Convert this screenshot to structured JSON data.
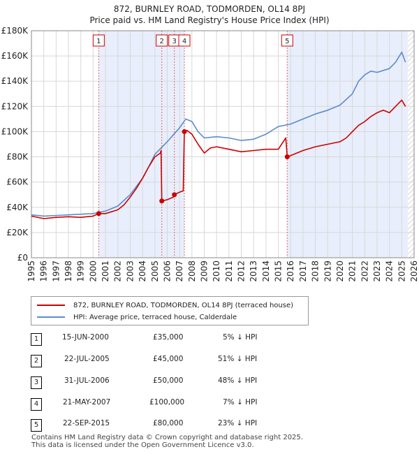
{
  "title": {
    "line1": "872, BURNLEY ROAD, TODMORDEN, OL14 8PJ",
    "line2": "Price paid vs. HM Land Registry's House Price Index (HPI)"
  },
  "colors": {
    "price_line": "#cc0000",
    "hpi_line": "#5b8ccc",
    "shade": "#e8eefb",
    "marker_line": "#e06666"
  },
  "legend": {
    "price_label": "872, BURNLEY ROAD, TODMORDEN, OL14 8PJ (terraced house)",
    "hpi_label": "HPI: Average price, terraced house, Calderdale"
  },
  "sales": [
    {
      "num": "1",
      "date": "15-JUN-2000",
      "price": "£35,000",
      "hpi": "5% ↓ HPI"
    },
    {
      "num": "2",
      "date": "22-JUL-2005",
      "price": "£45,000",
      "hpi": "51% ↓ HPI"
    },
    {
      "num": "3",
      "date": "31-JUL-2006",
      "price": "£50,000",
      "hpi": "48% ↓ HPI"
    },
    {
      "num": "4",
      "date": "21-MAY-2007",
      "price": "£100,000",
      "hpi": "7% ↓ HPI"
    },
    {
      "num": "5",
      "date": "22-SEP-2015",
      "price": "£80,000",
      "hpi": "23% ↓ HPI"
    }
  ],
  "footer": {
    "line1": "Contains HM Land Registry data © Crown copyright and database right 2025.",
    "line2": "This data is licensed under the Open Government Licence v3.0."
  },
  "chart_data": {
    "type": "line",
    "title": "Price paid vs. HM Land Registry's House Price Index (HPI)",
    "xlim": [
      1995,
      2026
    ],
    "ylim": [
      0,
      180000
    ],
    "x_ticks": [
      1995,
      1996,
      1997,
      1998,
      1999,
      2000,
      2001,
      2002,
      2003,
      2004,
      2005,
      2006,
      2007,
      2008,
      2009,
      2010,
      2011,
      2012,
      2013,
      2014,
      2015,
      2016,
      2017,
      2018,
      2019,
      2020,
      2021,
      2022,
      2023,
      2024,
      2025,
      2026
    ],
    "y_ticks": [
      0,
      20000,
      40000,
      60000,
      80000,
      100000,
      120000,
      140000,
      160000,
      180000
    ],
    "y_tick_labels": [
      "£0",
      "£20K",
      "£40K",
      "£60K",
      "£80K",
      "£100K",
      "£120K",
      "£140K",
      "£160K",
      "£180K"
    ],
    "shaded_ranges": [
      [
        2000.45,
        2007.39
      ],
      [
        2015.72,
        2025.5
      ]
    ],
    "hatched_from": 2025.5,
    "sale_markers": [
      {
        "label": "1",
        "x": 2000.45,
        "y": 35000
      },
      {
        "label": "2",
        "x": 2005.56,
        "y": 45000
      },
      {
        "label": "3",
        "x": 2006.58,
        "y": 50000
      },
      {
        "label": "4",
        "x": 2007.39,
        "y": 100000
      },
      {
        "label": "5",
        "x": 2015.72,
        "y": 80000
      }
    ],
    "series": [
      {
        "name": "872, BURNLEY ROAD, TODMORDEN, OL14 8PJ (terraced house)",
        "x": [
          1995.0,
          1996.0,
          1997.0,
          1998.0,
          1999.0,
          2000.0,
          2000.45,
          2001.0,
          2002.0,
          2002.5,
          2003.0,
          2003.5,
          2004.0,
          2004.5,
          2005.0,
          2005.45,
          2005.5,
          2005.56,
          2006.0,
          2006.5,
          2006.58,
          2007.0,
          2007.3,
          2007.35,
          2007.39,
          2007.6,
          2008.0,
          2008.5,
          2009.0,
          2009.5,
          2010.0,
          2011.0,
          2012.0,
          2013.0,
          2014.0,
          2015.0,
          2015.6,
          2015.72,
          2016.0,
          2017.0,
          2018.0,
          2019.0,
          2020.0,
          2020.5,
          2021.0,
          2021.5,
          2022.0,
          2022.5,
          2023.0,
          2023.5,
          2024.0,
          2024.5,
          2025.0,
          2025.3
        ],
        "y": [
          33000,
          31000,
          32000,
          32500,
          32000,
          33000,
          35000,
          35000,
          38000,
          42000,
          48000,
          55000,
          63000,
          72000,
          80000,
          83000,
          85000,
          45000,
          46000,
          48000,
          50000,
          52000,
          53000,
          80000,
          100000,
          101000,
          98000,
          90000,
          83000,
          87000,
          88000,
          86000,
          84000,
          85000,
          86000,
          86000,
          95000,
          80000,
          81000,
          85000,
          88000,
          90000,
          92000,
          95000,
          100000,
          105000,
          108000,
          112000,
          115000,
          117000,
          115000,
          120000,
          125000,
          120000
        ]
      },
      {
        "name": "HPI: Average price, terraced house, Calderdale",
        "x": [
          1995.0,
          1996.0,
          1997.0,
          1998.0,
          1999.0,
          2000.0,
          2001.0,
          2002.0,
          2003.0,
          2004.0,
          2004.5,
          2005.0,
          2006.0,
          2007.0,
          2007.5,
          2008.0,
          2008.5,
          2009.0,
          2010.0,
          2011.0,
          2012.0,
          2013.0,
          2014.0,
          2015.0,
          2016.0,
          2017.0,
          2018.0,
          2019.0,
          2020.0,
          2021.0,
          2021.5,
          2022.0,
          2022.5,
          2023.0,
          2024.0,
          2024.5,
          2025.0,
          2025.3
        ],
        "y": [
          34000,
          33000,
          33500,
          34000,
          34500,
          35000,
          37000,
          41000,
          50000,
          63000,
          72000,
          82000,
          92000,
          103000,
          110000,
          108000,
          100000,
          95000,
          96000,
          95000,
          93000,
          94000,
          98000,
          104000,
          106000,
          110000,
          114000,
          117000,
          121000,
          130000,
          140000,
          145000,
          148000,
          147000,
          150000,
          155000,
          163000,
          155000
        ]
      }
    ]
  }
}
